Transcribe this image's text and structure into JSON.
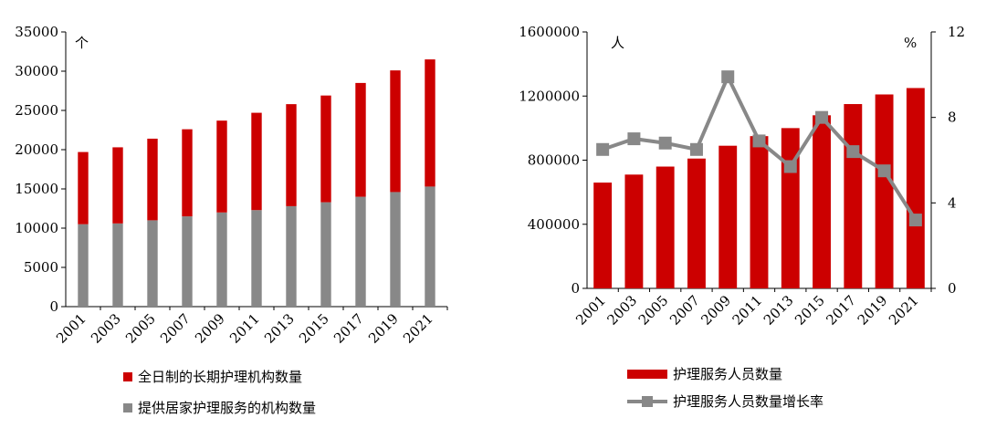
{
  "colors": {
    "red": "#cc0000",
    "gray": "#888888",
    "axis": "#000000"
  },
  "chart_data": [
    {
      "type": "bar",
      "stacked": true,
      "categories": [
        "2001",
        "2003",
        "2005",
        "2007",
        "2009",
        "2011",
        "2013",
        "2015",
        "2017",
        "2019",
        "2021"
      ],
      "y_unit_label": "个",
      "ylim": [
        0,
        35000
      ],
      "yticks": [
        0,
        5000,
        10000,
        15000,
        20000,
        25000,
        30000,
        35000
      ],
      "grid": false,
      "legend_position": "bottom",
      "series": [
        {
          "name": "提供居家护理服务的机构数量",
          "color": "#888888",
          "values": [
            10500,
            10600,
            11000,
            11500,
            12000,
            12300,
            12800,
            13300,
            14000,
            14600,
            15300
          ]
        },
        {
          "name": "全日制的长期护理机构数量",
          "color": "#cc0000",
          "values": [
            9200,
            9700,
            10400,
            11100,
            11700,
            12400,
            13000,
            13600,
            14500,
            15500,
            16200
          ]
        }
      ]
    },
    {
      "type": "bar+line",
      "categories": [
        "2001",
        "2003",
        "2005",
        "2007",
        "2009",
        "2011",
        "2013",
        "2015",
        "2017",
        "2019",
        "2021"
      ],
      "y_unit_label": "人",
      "y2_unit_label": "%",
      "ylim": [
        0,
        1600000
      ],
      "yticks": [
        0,
        400000,
        800000,
        1200000,
        1600000
      ],
      "y2lim": [
        0,
        12
      ],
      "y2ticks": [
        0,
        4,
        8,
        12
      ],
      "grid": false,
      "legend_position": "bottom",
      "series": [
        {
          "name": "护理服务人员数量",
          "kind": "bar",
          "axis": "left",
          "color": "#cc0000",
          "values": [
            660000,
            710000,
            760000,
            810000,
            890000,
            950000,
            1000000,
            1080000,
            1150000,
            1210000,
            1250000
          ]
        },
        {
          "name": "护理服务人员数量增长率",
          "kind": "line",
          "axis": "right",
          "color": "#888888",
          "values": [
            6.5,
            7.0,
            6.8,
            6.5,
            9.9,
            6.9,
            5.7,
            8.0,
            6.4,
            5.5,
            3.2
          ]
        }
      ]
    }
  ]
}
